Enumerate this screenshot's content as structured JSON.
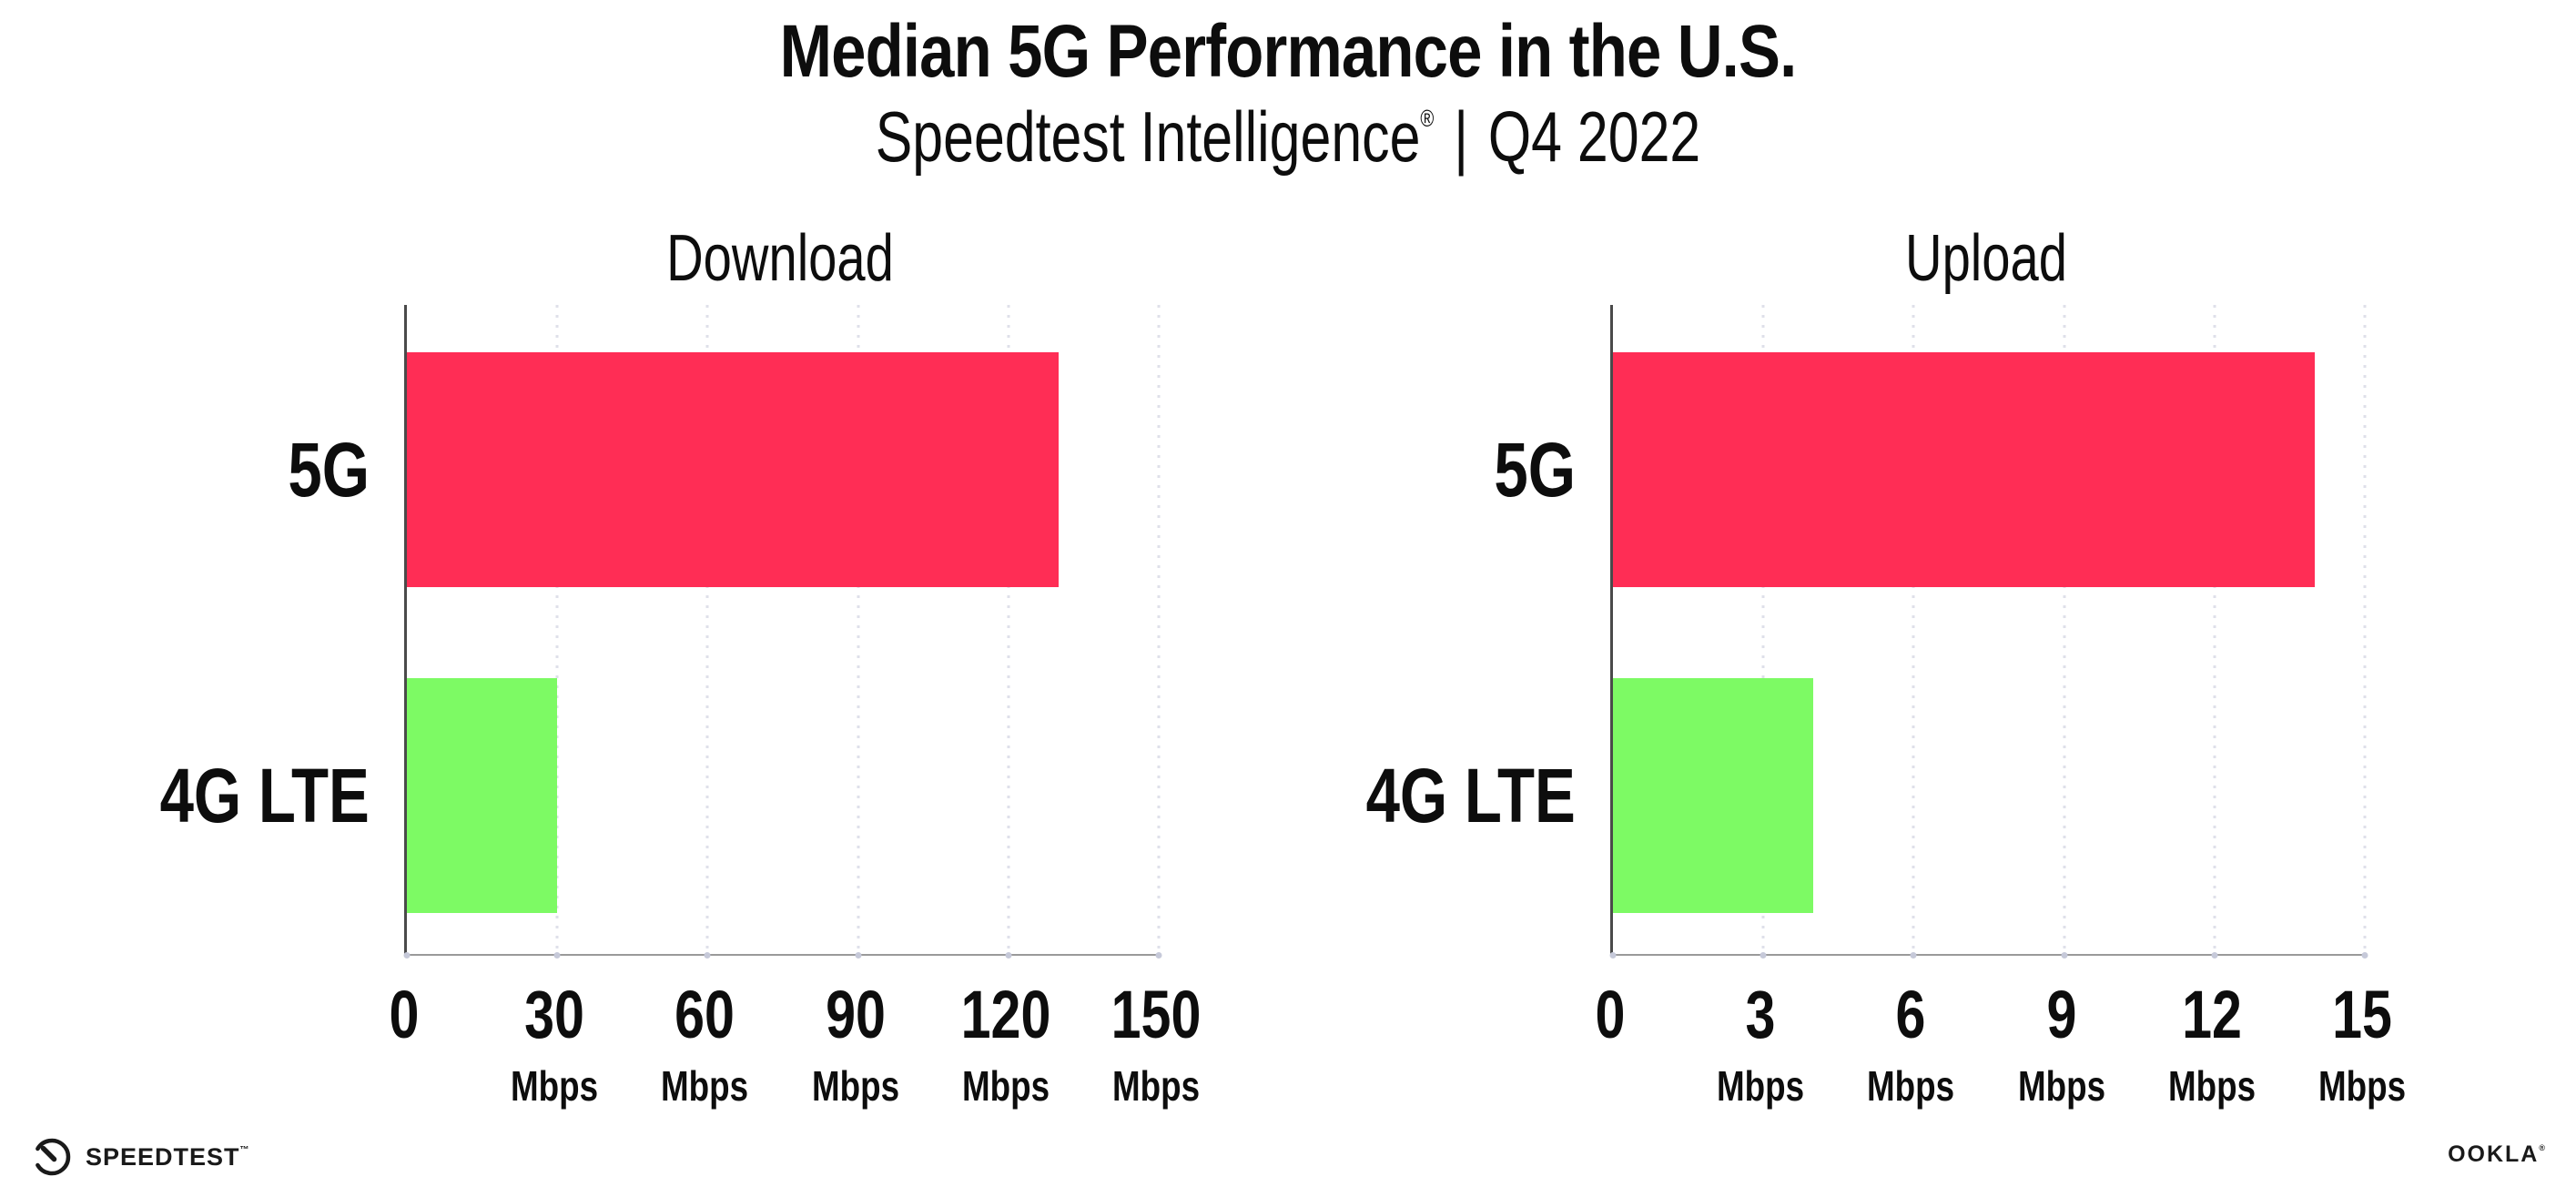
{
  "header": {
    "title": "Median 5G Performance in the U.S.",
    "subtitle_brand": "Speedtest Intelligence",
    "subtitle_reg": "®",
    "subtitle_separator": "|",
    "subtitle_period": "Q4 2022"
  },
  "chart_data": [
    {
      "type": "bar",
      "orientation": "horizontal",
      "title": "Download",
      "categories": [
        "5G",
        "4G LTE"
      ],
      "values": [
        130,
        30
      ],
      "unit": "Mbps",
      "xlim": [
        0,
        150
      ],
      "xticks": [
        0,
        30,
        60,
        90,
        120,
        150
      ],
      "bar_colors": [
        "#ff2d55",
        "#7dfa64"
      ],
      "grid": "dotted-vertical",
      "legend": "none"
    },
    {
      "type": "bar",
      "orientation": "horizontal",
      "title": "Upload",
      "categories": [
        "5G",
        "4G LTE"
      ],
      "values": [
        14,
        4
      ],
      "unit": "Mbps",
      "xlim": [
        0,
        15
      ],
      "xticks": [
        0,
        3,
        6,
        9,
        12,
        15
      ],
      "bar_colors": [
        "#ff2d55",
        "#7dfa64"
      ],
      "grid": "dotted-vertical",
      "legend": "none"
    }
  ],
  "footer": {
    "speedtest_label": "SPEEDTEST",
    "speedtest_mark": "™",
    "ookla_label": "OOKLA",
    "ookla_mark": "®"
  },
  "colors": {
    "bar_5g": "#ff2d55",
    "bar_4g_lte": "#7dfa64",
    "gridline": "#dfe0ea",
    "axis_line": "#9a9a9a",
    "spine": "#4a4a4a",
    "text": "#0d0d0d"
  }
}
